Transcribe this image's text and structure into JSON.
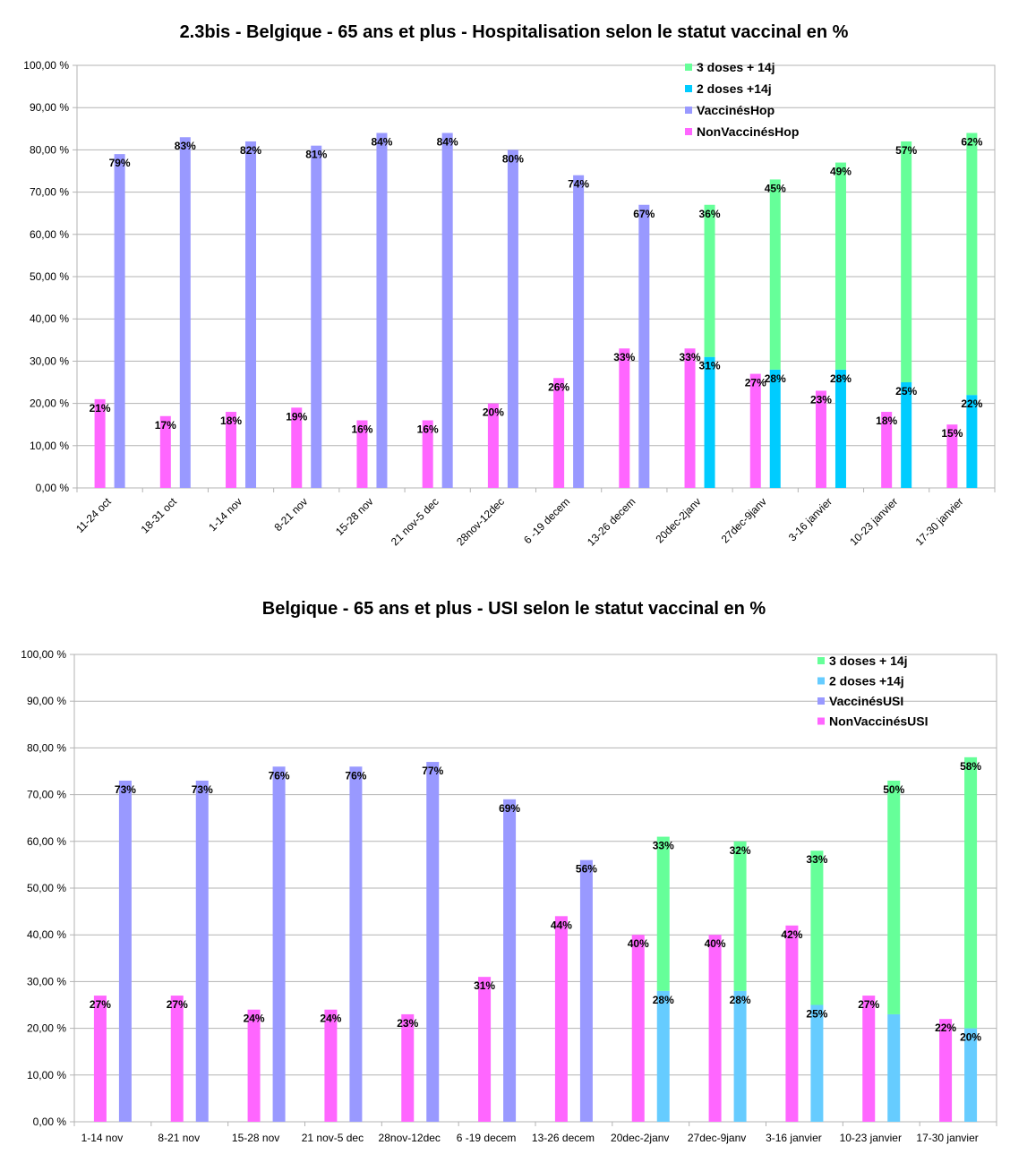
{
  "chart_data": [
    {
      "type": "bar",
      "title": "2.3bis - Belgique - 65 ans et plus - Hospitalisation selon le statut vaccinal en %",
      "xlabel": "",
      "ylabel": "",
      "ylim": [
        0,
        100
      ],
      "yticks": [
        "0,00 %",
        "10,00 %",
        "20,00 %",
        "30,00 %",
        "40,00 %",
        "50,00 %",
        "60,00 %",
        "70,00 %",
        "80,00 %",
        "90,00 %",
        "100,00 %"
      ],
      "grid": true,
      "legend_position": "top-right",
      "categories": [
        "11-24 oct",
        "18-31 oct",
        "1-14 nov",
        "8-21 nov",
        "15-28 nov",
        "21 nov-5 dec",
        "28nov-12dec",
        "6 -19 decem",
        "13-26 decem",
        "20dec-2janv",
        "27dec-9janv",
        "3-16 janvier",
        "10-23 janvier",
        "17-30 janvier"
      ],
      "series": [
        {
          "name": "3 doses + 14j",
          "color": "#66ff99",
          "values": [
            null,
            null,
            null,
            null,
            null,
            null,
            null,
            null,
            null,
            36,
            45,
            49,
            57,
            62
          ],
          "labels": [
            "",
            "",
            "",
            "",
            "",
            "",
            "",
            "",
            "",
            "36%",
            "45%",
            "49%",
            "57%",
            "62%"
          ]
        },
        {
          "name": "2 doses +14j",
          "color": "#00ccff",
          "values": [
            null,
            null,
            null,
            null,
            null,
            null,
            null,
            null,
            null,
            31,
            28,
            28,
            25,
            22
          ],
          "labels": [
            "",
            "",
            "",
            "",
            "",
            "",
            "",
            "",
            "",
            "31%",
            "28%",
            "28%",
            "25%",
            "22%"
          ]
        },
        {
          "name": "VaccinésHop",
          "color": "#9999ff",
          "values": [
            79,
            83,
            82,
            81,
            84,
            84,
            80,
            74,
            67,
            null,
            null,
            null,
            null,
            null
          ],
          "labels": [
            "79%",
            "83%",
            "82%",
            "81%",
            "84%",
            "84%",
            "80%",
            "74%",
            "67%",
            "",
            "",
            "",
            "",
            ""
          ]
        },
        {
          "name": "NonVaccinésHop",
          "color": "#ff66ff",
          "values": [
            21,
            17,
            18,
            19,
            16,
            16,
            20,
            26,
            33,
            33,
            27,
            23,
            18,
            15
          ],
          "labels": [
            "21%",
            "17%",
            "18%",
            "19%",
            "16%",
            "16%",
            "20%",
            "26%",
            "33%",
            "33%",
            "27%",
            "23%",
            "18%",
            "15%"
          ]
        }
      ]
    },
    {
      "type": "bar",
      "title": "Belgique - 65 ans et plus - USI selon le statut vaccinal en %",
      "xlabel": "",
      "ylabel": "",
      "ylim": [
        0,
        100
      ],
      "yticks": [
        "0,00 %",
        "10,00 %",
        "20,00 %",
        "30,00 %",
        "40,00 %",
        "50,00 %",
        "60,00 %",
        "70,00 %",
        "80,00 %",
        "90,00 %",
        "100,00 %"
      ],
      "grid": true,
      "legend_position": "top-right",
      "categories": [
        "1-14 nov",
        "8-21 nov",
        "15-28 nov",
        "21 nov-5 dec",
        "28nov-12dec",
        "6 -19 decem",
        "13-26 decem",
        "20dec-2janv",
        "27dec-9janv",
        "3-16 janvier",
        "10-23 janvier",
        "17-30 janvier"
      ],
      "series": [
        {
          "name": "3 doses + 14j",
          "color": "#66ff99",
          "values": [
            null,
            null,
            null,
            null,
            null,
            null,
            null,
            33,
            32,
            33,
            50,
            58
          ],
          "labels": [
            "",
            "",
            "",
            "",
            "",
            "",
            "",
            "33%",
            "32%",
            "33%",
            "50%",
            "58%"
          ]
        },
        {
          "name": "2 doses +14j",
          "color": "#66ccff",
          "values": [
            null,
            null,
            null,
            null,
            null,
            null,
            null,
            28,
            28,
            25,
            23,
            20
          ],
          "labels": [
            "",
            "",
            "",
            "",
            "",
            "",
            "",
            "28%",
            "28%",
            "25%",
            "",
            "20%"
          ]
        },
        {
          "name": "VaccinésUSI",
          "color": "#9999ff",
          "values": [
            73,
            73,
            76,
            76,
            77,
            69,
            56,
            null,
            null,
            null,
            null,
            null
          ],
          "labels": [
            "73%",
            "73%",
            "76%",
            "76%",
            "77%",
            "69%",
            "56%",
            "",
            "",
            "",
            "",
            ""
          ]
        },
        {
          "name": "NonVaccinésUSI",
          "color": "#ff66ff",
          "values": [
            27,
            27,
            24,
            24,
            23,
            31,
            44,
            40,
            40,
            42,
            27,
            22
          ],
          "labels": [
            "27%",
            "27%",
            "24%",
            "24%",
            "23%",
            "31%",
            "44%",
            "40%",
            "40%",
            "42%",
            "27%",
            "22%"
          ]
        }
      ]
    }
  ]
}
